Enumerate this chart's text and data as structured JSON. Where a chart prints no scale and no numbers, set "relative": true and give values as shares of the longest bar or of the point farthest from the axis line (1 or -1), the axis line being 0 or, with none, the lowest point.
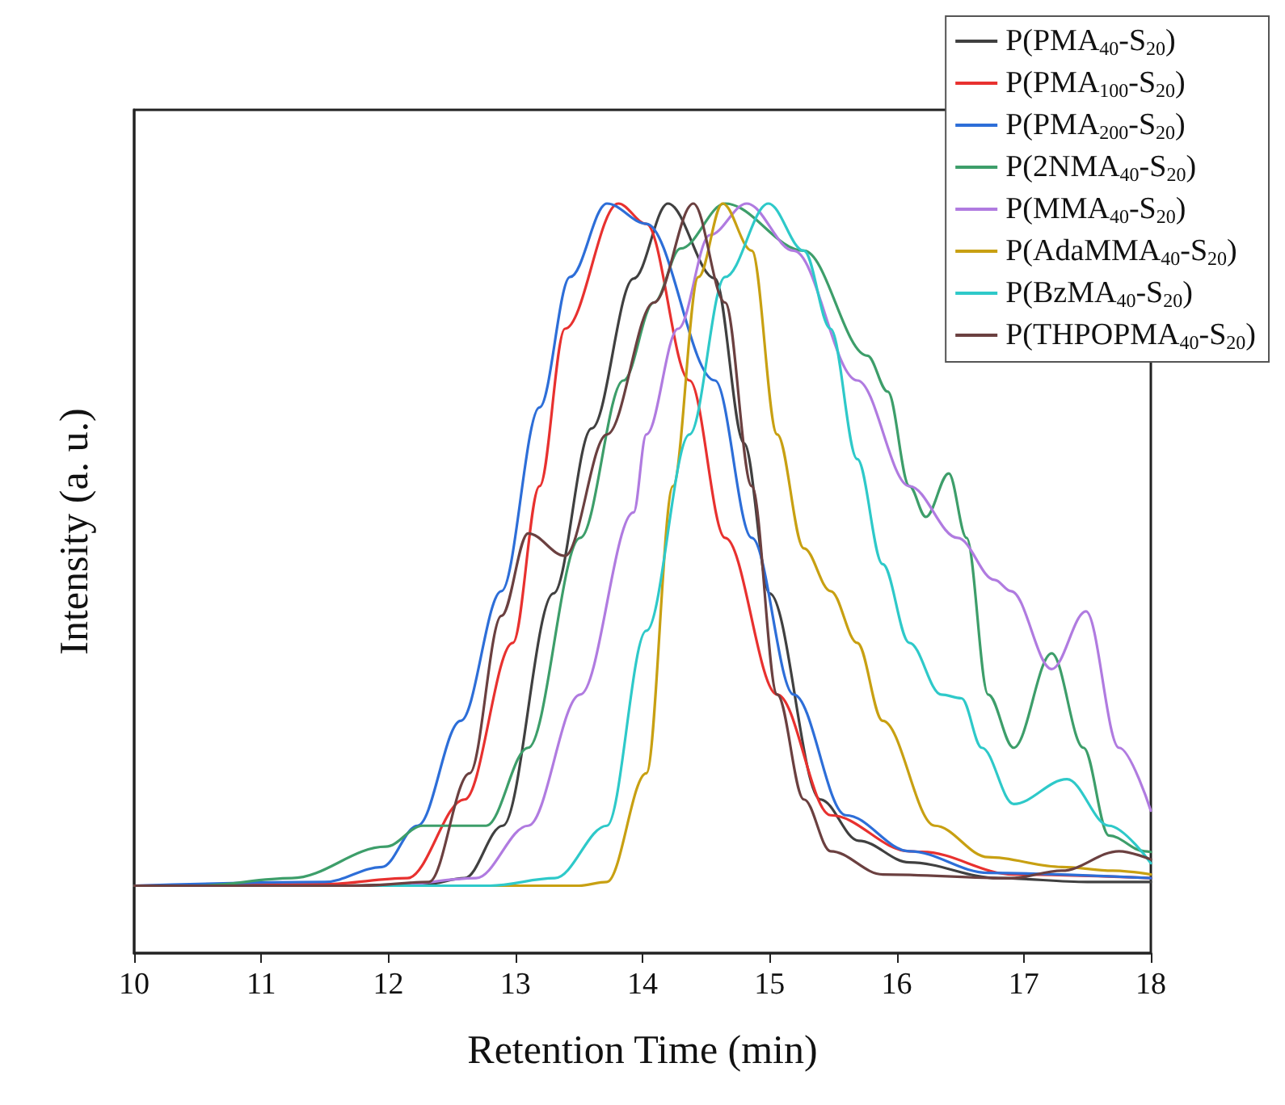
{
  "chart_data": {
    "type": "line",
    "relative": true,
    "xlabel": "Retention Time (min)",
    "ylabel": "Intensity (a. u.)",
    "xlim": [
      10,
      18
    ],
    "xticks": [
      10,
      11,
      12,
      13,
      14,
      15,
      16,
      17,
      18
    ],
    "legend": "top right",
    "marker": "none",
    "line_style": "solid",
    "grid": false,
    "series": [
      {
        "name": "P(PMA$_{40}$-S$_{20}$)",
        "color": "#404040",
        "x": [
          10,
          11.5,
          12.3,
          12.6,
          12.9,
          13.3,
          13.6,
          13.93,
          14.2,
          14.57,
          14.8,
          15,
          15.4,
          15.7,
          16.1,
          16.8,
          17.5,
          18
        ],
        "values": [
          0.09,
          0.09,
          0.092,
          0.1,
          0.17,
          0.48,
          0.7,
          0.9,
          1,
          0.9,
          0.68,
          0.48,
          0.205,
          0.15,
          0.121,
          0.1,
          0.095,
          0.095
        ]
      },
      {
        "name": "P(PMA$_{100}$-S$_{20}$)",
        "color": "#e8312f",
        "x": [
          10,
          11.5,
          12.15,
          12.6,
          12.98,
          13.19,
          13.39,
          13.81,
          14.03,
          14.37,
          14.65,
          15.06,
          15.48,
          16.1,
          16.2,
          16.92,
          18
        ],
        "values": [
          0.09,
          0.092,
          0.1,
          0.205,
          0.414,
          0.623,
          0.833,
          1,
          0.973,
          0.764,
          0.554,
          0.345,
          0.184,
          0.136,
          0.135,
          0.105,
          0.1
        ]
      },
      {
        "name": "P(PMA$_{200}$-S$_{20}$)",
        "color": "#2d6ed8",
        "x": [
          10,
          11.5,
          11.95,
          12.23,
          12.57,
          12.89,
          13.19,
          13.43,
          13.72,
          14.03,
          14.57,
          14.86,
          15.19,
          15.6,
          16.1,
          16.72,
          18
        ],
        "values": [
          0.09,
          0.095,
          0.115,
          0.17,
          0.31,
          0.483,
          0.728,
          0.902,
          1,
          0.973,
          0.764,
          0.554,
          0.345,
          0.184,
          0.136,
          0.107,
          0.1
        ]
      },
      {
        "name": "P(2NMA$_{40}$-S$_{20}$)",
        "color": "#3d9e6a",
        "x": [
          10,
          10.5,
          11.24,
          11.98,
          12.27,
          12.77,
          13.1,
          13.51,
          13.85,
          14.09,
          14.3,
          14.65,
          15.27,
          15.77,
          15.93,
          16.1,
          16.23,
          16.41,
          16.55,
          16.72,
          16.92,
          17.22,
          17.47,
          17.67,
          17.95,
          18
        ],
        "values": [
          0.09,
          0.09,
          0.1,
          0.142,
          0.17,
          0.17,
          0.274,
          0.554,
          0.764,
          0.868,
          0.94,
          1,
          0.937,
          0.797,
          0.749,
          0.623,
          0.582,
          0.64,
          0.554,
          0.345,
          0.274,
          0.4,
          0.274,
          0.157,
          0.136,
          0.135
        ]
      },
      {
        "name": "P(MMA$_{40}$-S$_{20}$)",
        "color": "#b07be0",
        "x": [
          10,
          12,
          12.69,
          13.1,
          13.51,
          13.93,
          14.03,
          14.28,
          14.53,
          14.82,
          15.19,
          15.69,
          16.1,
          16.48,
          16.77,
          16.9,
          17.22,
          17.49,
          17.75,
          18
        ],
        "values": [
          0.09,
          0.09,
          0.1,
          0.17,
          0.345,
          0.588,
          0.692,
          0.833,
          0.958,
          1,
          0.937,
          0.764,
          0.623,
          0.554,
          0.498,
          0.483,
          0.379,
          0.456,
          0.274,
          0.19
        ]
      },
      {
        "name": "P(AdaMMA$_{40}$-S$_{20}$)",
        "color": "#c8a012",
        "x": [
          10,
          13.5,
          13.72,
          14.03,
          14.24,
          14.44,
          14.63,
          14.86,
          15.06,
          15.27,
          15.48,
          15.69,
          15.89,
          16.3,
          16.72,
          17.3,
          17.7,
          18
        ],
        "values": [
          0.09,
          0.09,
          0.095,
          0.24,
          0.623,
          0.902,
          1,
          0.937,
          0.692,
          0.54,
          0.483,
          0.414,
          0.31,
          0.17,
          0.128,
          0.115,
          0.11,
          0.105
        ]
      },
      {
        "name": "P(BzMA$_{40}$-S$_{20}$)",
        "color": "#2ec9c9",
        "x": [
          10,
          12.8,
          13.31,
          13.72,
          14.03,
          14.37,
          14.65,
          14.99,
          15.27,
          15.48,
          15.69,
          15.89,
          16.1,
          16.35,
          16.51,
          16.67,
          16.92,
          17.34,
          17.67,
          18
        ],
        "values": [
          0.09,
          0.09,
          0.1,
          0.17,
          0.43,
          0.692,
          0.902,
          1,
          0.937,
          0.833,
          0.659,
          0.519,
          0.414,
          0.345,
          0.34,
          0.274,
          0.199,
          0.232,
          0.17,
          0.12
        ]
      },
      {
        "name": "P(THPOPMA$_{40}$-S$_{20}$)",
        "color": "#6b4040",
        "x": [
          10,
          11.8,
          12.32,
          12.64,
          12.89,
          13.1,
          13.39,
          13.72,
          14.09,
          14.4,
          14.65,
          14.86,
          15.06,
          15.27,
          15.48,
          15.89,
          16.9,
          17.3,
          17.75,
          18
        ],
        "values": [
          0.09,
          0.09,
          0.095,
          0.24,
          0.45,
          0.56,
          0.53,
          0.692,
          0.868,
          1,
          0.868,
          0.623,
          0.345,
          0.205,
          0.136,
          0.105,
          0.1,
          0.11,
          0.136,
          0.125
        ]
      }
    ]
  }
}
